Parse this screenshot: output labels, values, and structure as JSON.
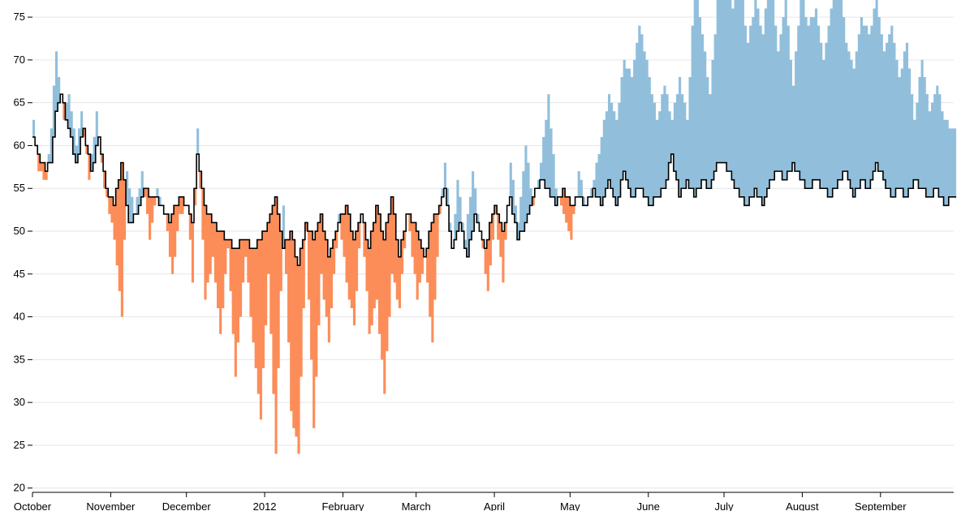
{
  "chart_data": {
    "type": "area",
    "title": "",
    "xlabel": "",
    "ylabel": "",
    "ylim": [
      19.5,
      77
    ],
    "xlim": [
      "2011-10-01",
      "2012-09-30"
    ],
    "grid": true,
    "legend": "none",
    "y_ticks": [
      20,
      25,
      30,
      35,
      40,
      45,
      50,
      55,
      60,
      65,
      70,
      75
    ],
    "x_ticks": [
      {
        "date": "2011-10-01",
        "label": "October"
      },
      {
        "date": "2011-11-01",
        "label": "November"
      },
      {
        "date": "2011-12-01",
        "label": "December"
      },
      {
        "date": "2012-01-01",
        "label": "2012"
      },
      {
        "date": "2012-02-01",
        "label": "February"
      },
      {
        "date": "2012-03-01",
        "label": "March"
      },
      {
        "date": "2012-04-01",
        "label": "April"
      },
      {
        "date": "2012-05-01",
        "label": "May"
      },
      {
        "date": "2012-06-01",
        "label": "June"
      },
      {
        "date": "2012-07-01",
        "label": "July"
      },
      {
        "date": "2012-08-01",
        "label": "August"
      },
      {
        "date": "2012-09-01",
        "label": "September"
      }
    ],
    "colors": {
      "above": "#91bfdb",
      "below": "#fc8d59",
      "line": "#000000",
      "grid": "#e6e6e6"
    },
    "series": [
      {
        "key": "temperature",
        "keyframes": [
          [
            "2011-10-01",
            63
          ],
          [
            "2011-10-03",
            57
          ],
          [
            "2011-10-06",
            56
          ],
          [
            "2011-10-08",
            62
          ],
          [
            "2011-10-10",
            71
          ],
          [
            "2011-10-13",
            63
          ],
          [
            "2011-10-15",
            66
          ],
          [
            "2011-10-18",
            60
          ],
          [
            "2011-10-20",
            64
          ],
          [
            "2011-10-23",
            56
          ],
          [
            "2011-10-26",
            64
          ],
          [
            "2011-10-29",
            55
          ],
          [
            "2011-11-02",
            49
          ],
          [
            "2011-11-05",
            40
          ],
          [
            "2011-11-07",
            57
          ],
          [
            "2011-11-10",
            52
          ],
          [
            "2011-11-13",
            57
          ],
          [
            "2011-11-16",
            49
          ],
          [
            "2011-11-19",
            55
          ],
          [
            "2011-11-22",
            52
          ],
          [
            "2011-11-25",
            45
          ],
          [
            "2011-11-28",
            52
          ],
          [
            "2011-12-01",
            53
          ],
          [
            "2011-12-03",
            44
          ],
          [
            "2011-12-05",
            62
          ],
          [
            "2011-12-08",
            42
          ],
          [
            "2011-12-11",
            47
          ],
          [
            "2011-12-14",
            38
          ],
          [
            "2011-12-17",
            48
          ],
          [
            "2011-12-20",
            33
          ],
          [
            "2011-12-24",
            47
          ],
          [
            "2011-12-27",
            37
          ],
          [
            "2011-12-30",
            28
          ],
          [
            "2012-01-02",
            45
          ],
          [
            "2012-01-05",
            24
          ],
          [
            "2012-01-08",
            53
          ],
          [
            "2012-01-11",
            29
          ],
          [
            "2012-01-14",
            24
          ],
          [
            "2012-01-17",
            50
          ],
          [
            "2012-01-20",
            27
          ],
          [
            "2012-01-23",
            45
          ],
          [
            "2012-01-26",
            37
          ],
          [
            "2012-01-30",
            52
          ],
          [
            "2012-02-02",
            44
          ],
          [
            "2012-02-05",
            39
          ],
          [
            "2012-02-08",
            52
          ],
          [
            "2012-02-11",
            38
          ],
          [
            "2012-02-14",
            42
          ],
          [
            "2012-02-17",
            31
          ],
          [
            "2012-02-20",
            45
          ],
          [
            "2012-02-23",
            41
          ],
          [
            "2012-02-26",
            52
          ],
          [
            "2012-03-01",
            42
          ],
          [
            "2012-03-04",
            47
          ],
          [
            "2012-03-07",
            37
          ],
          [
            "2012-03-10",
            52
          ],
          [
            "2012-03-12",
            58
          ],
          [
            "2012-03-15",
            48
          ],
          [
            "2012-03-17",
            56
          ],
          [
            "2012-03-20",
            49
          ],
          [
            "2012-03-23",
            57
          ],
          [
            "2012-03-26",
            50
          ],
          [
            "2012-03-29",
            43
          ],
          [
            "2012-04-01",
            52
          ],
          [
            "2012-04-04",
            44
          ],
          [
            "2012-04-07",
            58
          ],
          [
            "2012-04-10",
            51
          ],
          [
            "2012-04-13",
            60
          ],
          [
            "2012-04-16",
            53
          ],
          [
            "2012-04-19",
            58
          ],
          [
            "2012-04-22",
            66
          ],
          [
            "2012-04-25",
            55
          ],
          [
            "2012-04-28",
            52
          ],
          [
            "2012-05-01",
            49
          ],
          [
            "2012-05-04",
            57
          ],
          [
            "2012-05-07",
            53
          ],
          [
            "2012-05-10",
            56
          ],
          [
            "2012-05-13",
            61
          ],
          [
            "2012-05-16",
            66
          ],
          [
            "2012-05-19",
            63
          ],
          [
            "2012-05-22",
            70
          ],
          [
            "2012-05-25",
            68
          ],
          [
            "2012-05-28",
            74
          ],
          [
            "2012-06-01",
            68
          ],
          [
            "2012-06-04",
            63
          ],
          [
            "2012-06-07",
            67
          ],
          [
            "2012-06-10",
            63
          ],
          [
            "2012-06-13",
            68
          ],
          [
            "2012-06-16",
            63
          ],
          [
            "2012-06-19",
            79
          ],
          [
            "2012-06-22",
            73
          ],
          [
            "2012-06-25",
            66
          ],
          [
            "2012-06-28",
            77
          ],
          [
            "2012-07-01",
            81
          ],
          [
            "2012-07-04",
            76
          ],
          [
            "2012-07-07",
            79
          ],
          [
            "2012-07-10",
            72
          ],
          [
            "2012-07-13",
            77
          ],
          [
            "2012-07-16",
            73
          ],
          [
            "2012-07-19",
            81
          ],
          [
            "2012-07-22",
            71
          ],
          [
            "2012-07-25",
            77
          ],
          [
            "2012-07-28",
            67
          ],
          [
            "2012-07-31",
            78
          ],
          [
            "2012-08-03",
            74
          ],
          [
            "2012-08-06",
            76
          ],
          [
            "2012-08-09",
            70
          ],
          [
            "2012-08-12",
            76
          ],
          [
            "2012-08-15",
            80
          ],
          [
            "2012-08-18",
            72
          ],
          [
            "2012-08-21",
            69
          ],
          [
            "2012-08-24",
            75
          ],
          [
            "2012-08-27",
            73
          ],
          [
            "2012-08-30",
            77
          ],
          [
            "2012-09-02",
            71
          ],
          [
            "2012-09-05",
            74
          ],
          [
            "2012-09-08",
            68
          ],
          [
            "2012-09-11",
            72
          ],
          [
            "2012-09-14",
            63
          ],
          [
            "2012-09-17",
            70
          ],
          [
            "2012-09-20",
            64
          ],
          [
            "2012-09-23",
            67
          ],
          [
            "2012-09-26",
            63
          ],
          [
            "2012-09-29",
            62
          ]
        ]
      },
      {
        "key": "normal",
        "keyframes": [
          [
            "2011-10-01",
            61
          ],
          [
            "2011-10-03",
            59
          ],
          [
            "2011-10-06",
            57
          ],
          [
            "2011-10-08",
            58
          ],
          [
            "2011-10-10",
            64
          ],
          [
            "2011-10-12",
            66
          ],
          [
            "2011-10-15",
            62
          ],
          [
            "2011-10-18",
            58
          ],
          [
            "2011-10-21",
            62
          ],
          [
            "2011-10-24",
            57
          ],
          [
            "2011-10-27",
            61
          ],
          [
            "2011-10-30",
            55
          ],
          [
            "2011-11-02",
            53
          ],
          [
            "2011-11-05",
            58
          ],
          [
            "2011-11-08",
            51
          ],
          [
            "2011-11-11",
            52
          ],
          [
            "2011-11-14",
            55
          ],
          [
            "2011-11-17",
            54
          ],
          [
            "2011-11-21",
            53
          ],
          [
            "2011-11-24",
            51
          ],
          [
            "2011-11-28",
            54
          ],
          [
            "2011-12-01",
            53
          ],
          [
            "2011-12-03",
            51
          ],
          [
            "2011-12-05",
            59
          ],
          [
            "2011-12-08",
            53
          ],
          [
            "2011-12-11",
            51
          ],
          [
            "2011-12-14",
            50
          ],
          [
            "2011-12-17",
            49
          ],
          [
            "2011-12-20",
            48
          ],
          [
            "2011-12-24",
            49
          ],
          [
            "2011-12-27",
            48
          ],
          [
            "2011-12-30",
            49
          ],
          [
            "2012-01-02",
            51
          ],
          [
            "2012-01-05",
            54
          ],
          [
            "2012-01-08",
            48
          ],
          [
            "2012-01-11",
            50
          ],
          [
            "2012-01-14",
            46
          ],
          [
            "2012-01-17",
            51
          ],
          [
            "2012-01-20",
            49
          ],
          [
            "2012-01-23",
            52
          ],
          [
            "2012-01-26",
            47
          ],
          [
            "2012-01-30",
            51
          ],
          [
            "2012-02-02",
            53
          ],
          [
            "2012-02-05",
            49
          ],
          [
            "2012-02-08",
            52
          ],
          [
            "2012-02-11",
            48
          ],
          [
            "2012-02-14",
            53
          ],
          [
            "2012-02-17",
            49
          ],
          [
            "2012-02-20",
            54
          ],
          [
            "2012-02-23",
            47
          ],
          [
            "2012-02-26",
            52
          ],
          [
            "2012-03-01",
            50
          ],
          [
            "2012-03-04",
            47
          ],
          [
            "2012-03-07",
            51
          ],
          [
            "2012-03-10",
            53
          ],
          [
            "2012-03-12",
            55
          ],
          [
            "2012-03-15",
            48
          ],
          [
            "2012-03-18",
            51
          ],
          [
            "2012-03-21",
            47
          ],
          [
            "2012-03-24",
            52
          ],
          [
            "2012-03-28",
            48
          ],
          [
            "2012-04-01",
            53
          ],
          [
            "2012-04-04",
            50
          ],
          [
            "2012-04-07",
            54
          ],
          [
            "2012-04-10",
            49
          ],
          [
            "2012-04-13",
            51
          ],
          [
            "2012-04-16",
            54
          ],
          [
            "2012-04-19",
            56
          ],
          [
            "2012-04-22",
            55
          ],
          [
            "2012-04-25",
            53
          ],
          [
            "2012-04-28",
            55
          ],
          [
            "2012-05-01",
            53
          ],
          [
            "2012-05-04",
            54
          ],
          [
            "2012-05-07",
            53
          ],
          [
            "2012-05-10",
            55
          ],
          [
            "2012-05-13",
            53
          ],
          [
            "2012-05-16",
            56
          ],
          [
            "2012-05-19",
            53
          ],
          [
            "2012-05-22",
            57
          ],
          [
            "2012-05-25",
            54
          ],
          [
            "2012-05-28",
            55
          ],
          [
            "2012-06-01",
            53
          ],
          [
            "2012-06-04",
            54
          ],
          [
            "2012-06-07",
            55
          ],
          [
            "2012-06-10",
            59
          ],
          [
            "2012-06-13",
            54
          ],
          [
            "2012-06-16",
            56
          ],
          [
            "2012-06-19",
            54
          ],
          [
            "2012-06-22",
            56
          ],
          [
            "2012-06-25",
            55
          ],
          [
            "2012-06-28",
            58
          ],
          [
            "2012-07-01",
            58
          ],
          [
            "2012-07-04",
            56
          ],
          [
            "2012-07-07",
            54
          ],
          [
            "2012-07-10",
            53
          ],
          [
            "2012-07-13",
            55
          ],
          [
            "2012-07-16",
            53
          ],
          [
            "2012-07-19",
            56
          ],
          [
            "2012-07-22",
            57
          ],
          [
            "2012-07-25",
            56
          ],
          [
            "2012-07-28",
            58
          ],
          [
            "2012-07-31",
            56
          ],
          [
            "2012-08-03",
            55
          ],
          [
            "2012-08-06",
            56
          ],
          [
            "2012-08-09",
            55
          ],
          [
            "2012-08-12",
            54
          ],
          [
            "2012-08-15",
            56
          ],
          [
            "2012-08-18",
            57
          ],
          [
            "2012-08-21",
            54
          ],
          [
            "2012-08-24",
            56
          ],
          [
            "2012-08-27",
            55
          ],
          [
            "2012-08-30",
            58
          ],
          [
            "2012-09-02",
            56
          ],
          [
            "2012-09-05",
            54
          ],
          [
            "2012-09-08",
            55
          ],
          [
            "2012-09-11",
            54
          ],
          [
            "2012-09-14",
            56
          ],
          [
            "2012-09-17",
            55
          ],
          [
            "2012-09-20",
            54
          ],
          [
            "2012-09-23",
            55
          ],
          [
            "2012-09-26",
            53
          ],
          [
            "2012-09-29",
            54
          ]
        ]
      }
    ]
  }
}
